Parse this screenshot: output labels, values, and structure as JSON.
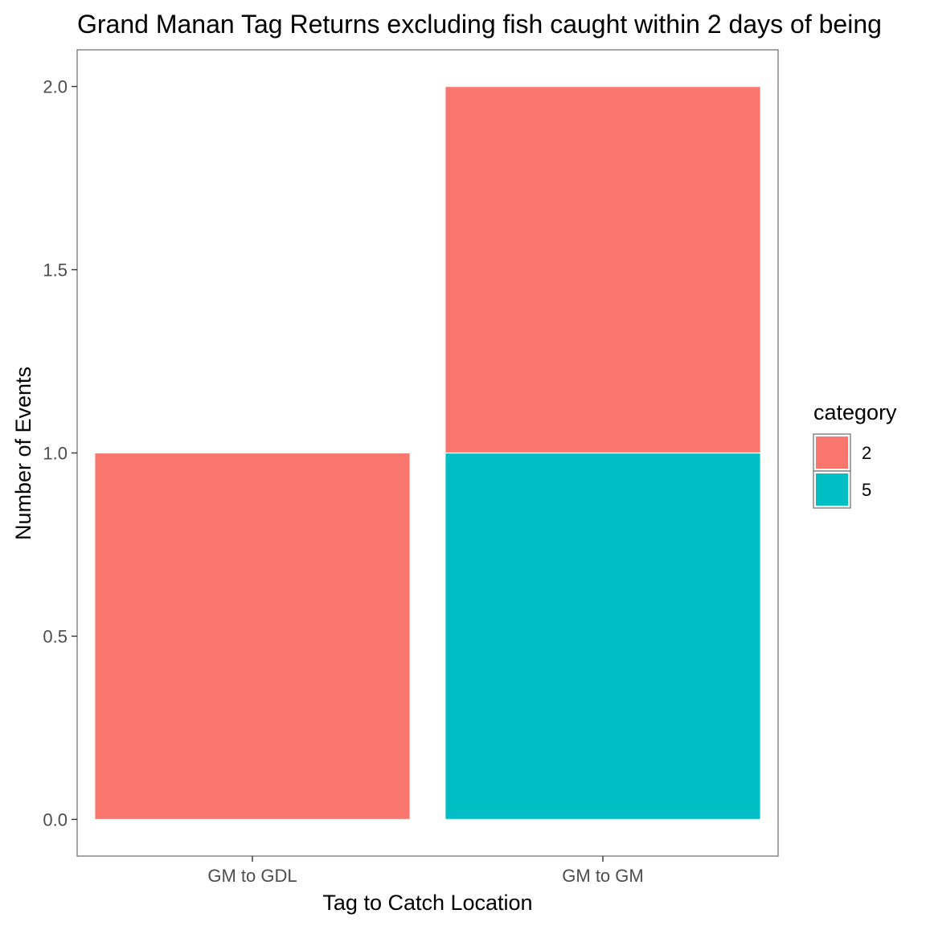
{
  "chart_data": {
    "type": "bar",
    "stacked": true,
    "title": "Grand Manan Tag Returns excluding fish caught within 2 days of being",
    "xlabel": "Tag to Catch Location",
    "ylabel": "Number of Events",
    "categories": [
      "GM to GDL",
      "GM to GM"
    ],
    "series": [
      {
        "name": "2",
        "color": "#F8766D",
        "values": [
          1,
          1
        ]
      },
      {
        "name": "5",
        "color": "#00BFC4",
        "values": [
          0,
          1
        ]
      }
    ],
    "stack_order": [
      "5",
      "2"
    ],
    "y_ticks": [
      0.0,
      0.5,
      1.0,
      1.5,
      2.0
    ],
    "y_tick_labels": [
      "0.0",
      "0.5",
      "1.0",
      "1.5",
      "2.0"
    ],
    "ylim": [
      -0.1,
      2.1
    ],
    "grid": false,
    "legend": {
      "title": "category",
      "placement": "right",
      "entries": [
        "2",
        "5"
      ]
    }
  }
}
